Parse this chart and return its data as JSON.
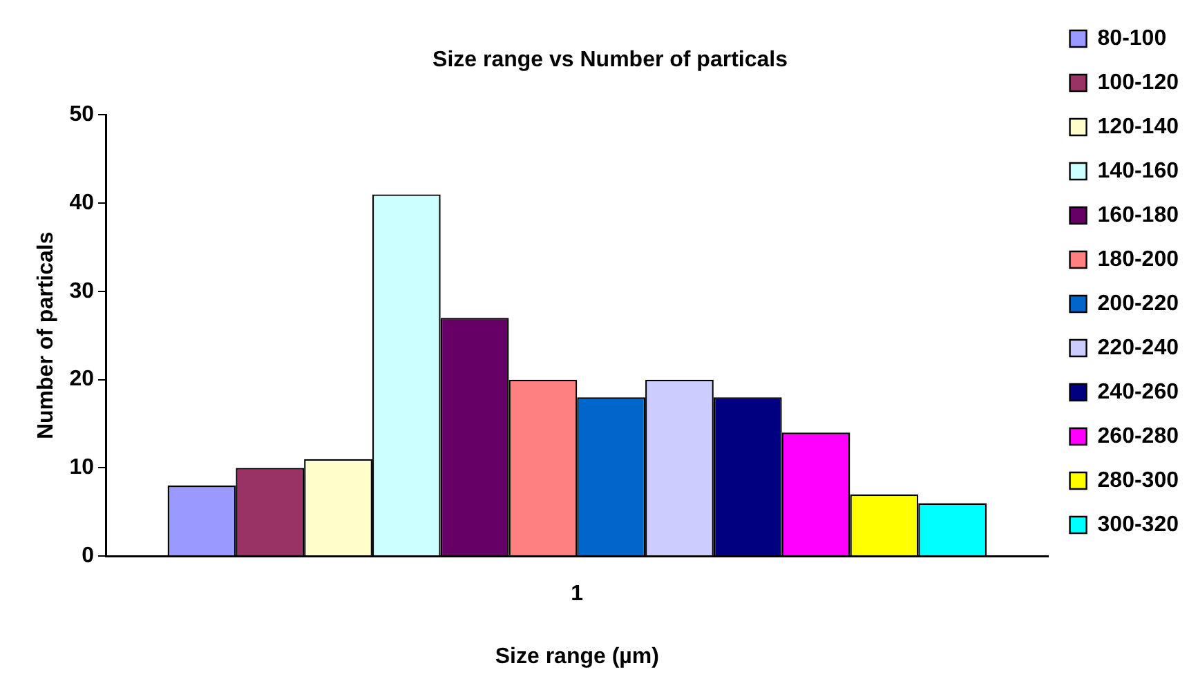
{
  "chart_data": {
    "type": "bar",
    "title": "Size range vs Number of particals",
    "xlabel": "Size range (µm)",
    "ylabel": "Number of particals",
    "categories": [
      "1"
    ],
    "series": [
      {
        "name": "80-100",
        "color": "#9999ff",
        "values": [
          8
        ]
      },
      {
        "name": "100-120",
        "color": "#993366",
        "values": [
          10
        ]
      },
      {
        "name": "120-140",
        "color": "#ffffcc",
        "values": [
          11
        ]
      },
      {
        "name": "140-160",
        "color": "#ccffff",
        "values": [
          41
        ]
      },
      {
        "name": "160-180",
        "color": "#660066",
        "values": [
          27
        ]
      },
      {
        "name": "180-200",
        "color": "#ff8080",
        "values": [
          20
        ]
      },
      {
        "name": "200-220",
        "color": "#0066cc",
        "values": [
          18
        ]
      },
      {
        "name": "220-240",
        "color": "#ccccff",
        "values": [
          20
        ]
      },
      {
        "name": "240-260",
        "color": "#000080",
        "values": [
          18
        ]
      },
      {
        "name": "260-280",
        "color": "#ff00ff",
        "values": [
          14
        ]
      },
      {
        "name": "280-300",
        "color": "#ffff00",
        "values": [
          7
        ]
      },
      {
        "name": "300-320",
        "color": "#00ffff",
        "values": [
          6
        ]
      }
    ],
    "ylim": [
      0,
      50
    ],
    "yticks": [
      0,
      10,
      20,
      30,
      40,
      50
    ],
    "grid": false,
    "legend": "right"
  }
}
